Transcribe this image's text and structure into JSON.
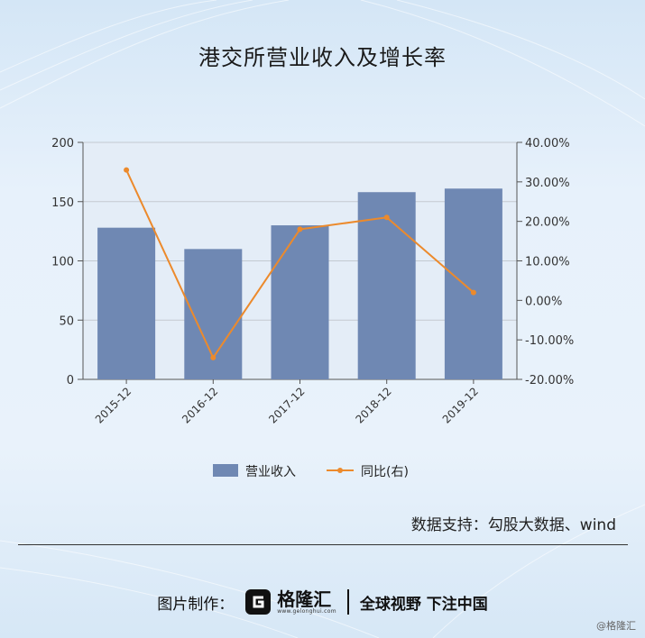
{
  "chart_data": {
    "type": "bar",
    "title": "港交所营业收入及增长率",
    "categories": [
      "2015-12",
      "2016-12",
      "2017-12",
      "2018-12",
      "2019-12"
    ],
    "series": [
      {
        "name": "营业收入",
        "type": "bar",
        "axis": "left",
        "values": [
          128,
          110,
          130,
          158,
          161
        ],
        "color": "#6f88b3"
      },
      {
        "name": "同比(右)",
        "type": "line",
        "axis": "right",
        "values": [
          33,
          -14.5,
          18,
          21,
          2
        ],
        "color": "#ec8a2c"
      }
    ],
    "y_left": {
      "ylim": [
        0,
        200
      ],
      "ticks": [
        "0",
        "50",
        "100",
        "150",
        "200"
      ]
    },
    "y_right": {
      "ylim": [
        -20,
        40
      ],
      "ticks": [
        "-20.00%",
        "-10.00%",
        "0.00%",
        "10.00%",
        "20.00%",
        "30.00%",
        "40.00%"
      ]
    },
    "grid": true,
    "legend": "bottom-center"
  },
  "watermark": {
    "brand": "格隆汇",
    "url": "www.gelonghui.com",
    "text": "勾股大数据"
  },
  "source": "数据支持：勾股大数据、wind",
  "footer": {
    "prefix": "图片制作：",
    "logo_name": "格隆汇",
    "logo_url": "www.gelonghui.com",
    "slogan": "全球视野 下注中国"
  },
  "corner_mark": "@格隆汇"
}
